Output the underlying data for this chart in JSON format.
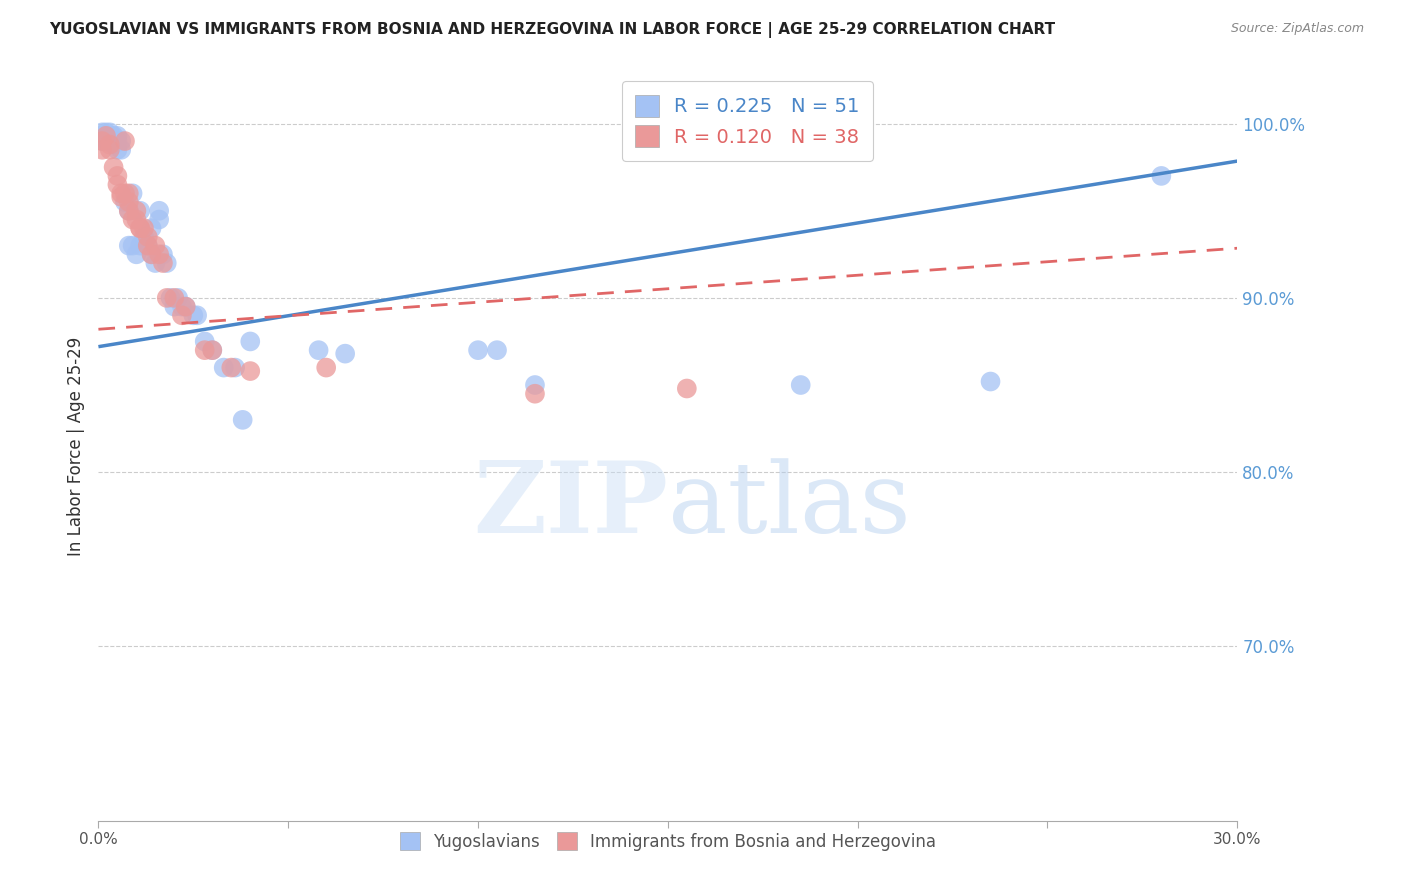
{
  "title": "YUGOSLAVIAN VS IMMIGRANTS FROM BOSNIA AND HERZEGOVINA IN LABOR FORCE | AGE 25-29 CORRELATION CHART",
  "source": "Source: ZipAtlas.com",
  "ylabel": "In Labor Force | Age 25-29",
  "x_min": 0.0,
  "x_max": 0.3,
  "y_min": 0.6,
  "y_max": 1.03,
  "x_ticks": [
    0.0,
    0.05,
    0.1,
    0.15,
    0.2,
    0.25,
    0.3
  ],
  "x_tick_labels": [
    "0.0%",
    "",
    "",
    "",
    "",
    "",
    "30.0%"
  ],
  "y_ticks": [
    0.7,
    0.8,
    0.9,
    1.0
  ],
  "y_tick_labels": [
    "70.0%",
    "80.0%",
    "90.0%",
    "100.0%"
  ],
  "blue_R": 0.225,
  "blue_N": 51,
  "pink_R": 0.12,
  "pink_N": 38,
  "blue_color": "#a4c2f4",
  "pink_color": "#ea9999",
  "blue_line_color": "#4a86c8",
  "pink_line_color": "#e06666",
  "blue_intercept": 0.872,
  "blue_slope": 0.355,
  "pink_intercept": 0.882,
  "pink_slope": 0.155,
  "blue_points_x": [
    0.001,
    0.001,
    0.002,
    0.002,
    0.003,
    0.003,
    0.004,
    0.004,
    0.005,
    0.005,
    0.005,
    0.006,
    0.006,
    0.007,
    0.008,
    0.008,
    0.009,
    0.009,
    0.01,
    0.011,
    0.011,
    0.012,
    0.013,
    0.014,
    0.014,
    0.015,
    0.016,
    0.016,
    0.017,
    0.018,
    0.019,
    0.02,
    0.021,
    0.022,
    0.023,
    0.025,
    0.026,
    0.028,
    0.03,
    0.033,
    0.036,
    0.038,
    0.04,
    0.058,
    0.065,
    0.1,
    0.105,
    0.115,
    0.185,
    0.235,
    0.28
  ],
  "blue_points_y": [
    0.99,
    0.995,
    0.99,
    0.995,
    0.99,
    0.995,
    0.993,
    0.988,
    0.993,
    0.99,
    0.985,
    0.99,
    0.985,
    0.955,
    0.93,
    0.95,
    0.93,
    0.96,
    0.925,
    0.93,
    0.95,
    0.935,
    0.93,
    0.925,
    0.94,
    0.92,
    0.945,
    0.95,
    0.925,
    0.92,
    0.9,
    0.895,
    0.9,
    0.895,
    0.895,
    0.89,
    0.89,
    0.875,
    0.87,
    0.86,
    0.86,
    0.83,
    0.875,
    0.87,
    0.868,
    0.87,
    0.87,
    0.85,
    0.85,
    0.852,
    0.97
  ],
  "pink_points_x": [
    0.001,
    0.001,
    0.002,
    0.003,
    0.003,
    0.004,
    0.005,
    0.005,
    0.006,
    0.006,
    0.007,
    0.007,
    0.008,
    0.008,
    0.008,
    0.009,
    0.01,
    0.01,
    0.011,
    0.011,
    0.012,
    0.013,
    0.013,
    0.014,
    0.015,
    0.016,
    0.017,
    0.018,
    0.02,
    0.022,
    0.023,
    0.028,
    0.03,
    0.035,
    0.04,
    0.06,
    0.115,
    0.155
  ],
  "pink_points_y": [
    0.99,
    0.985,
    0.993,
    0.988,
    0.985,
    0.975,
    0.97,
    0.965,
    0.96,
    0.958,
    0.99,
    0.96,
    0.96,
    0.955,
    0.95,
    0.945,
    0.95,
    0.945,
    0.94,
    0.94,
    0.94,
    0.935,
    0.93,
    0.925,
    0.93,
    0.925,
    0.92,
    0.9,
    0.9,
    0.89,
    0.895,
    0.87,
    0.87,
    0.86,
    0.858,
    0.86,
    0.845,
    0.848
  ]
}
